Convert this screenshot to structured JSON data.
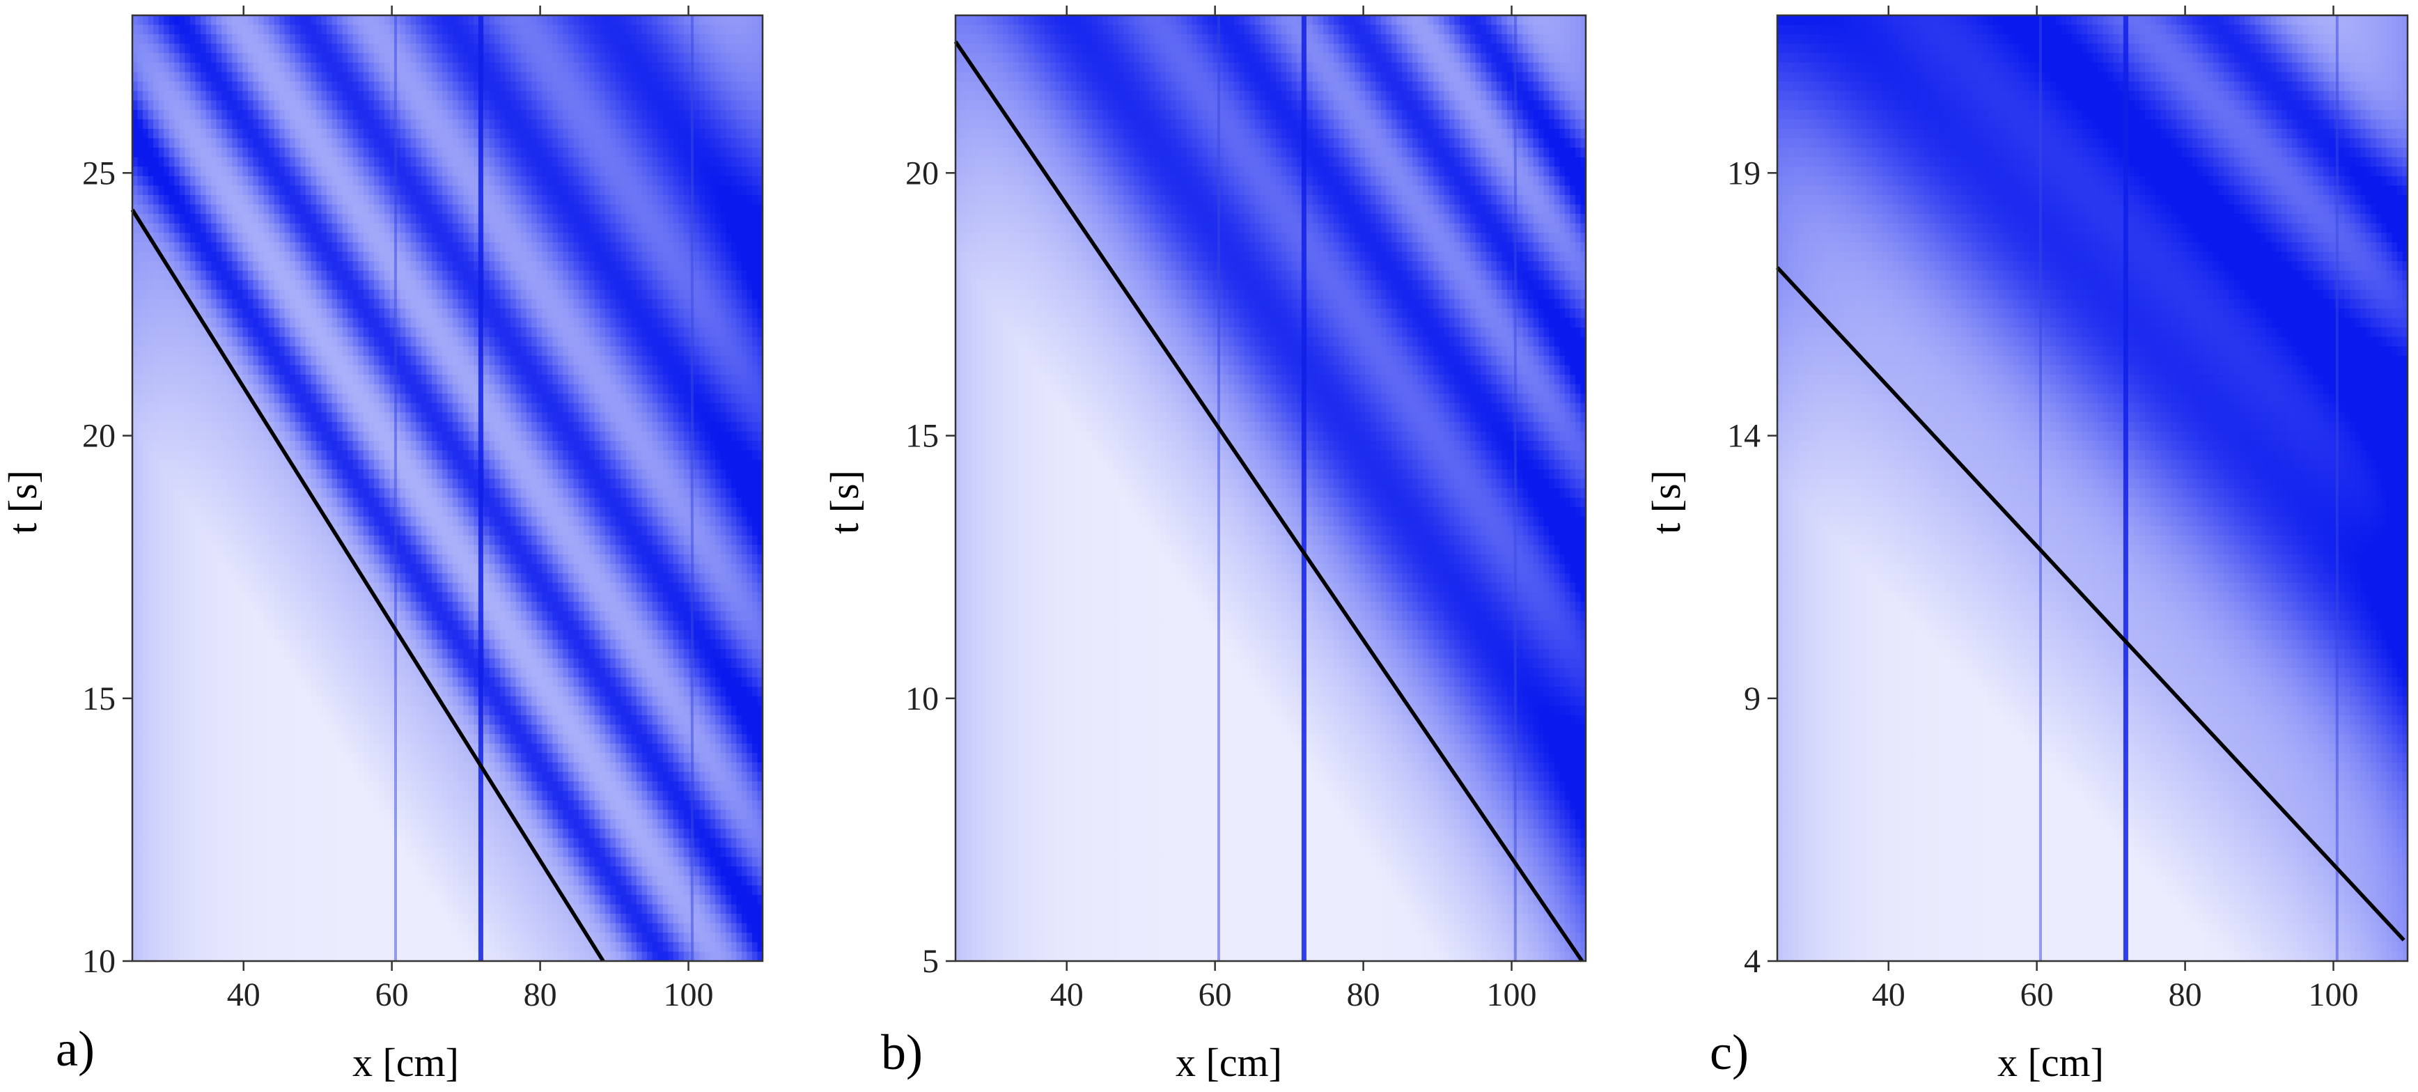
{
  "colors": {
    "low": "#ffffff",
    "high": "#0a1aee",
    "fit_line": "#000000"
  },
  "chart_data": [
    {
      "panel_label": "a)",
      "type": "heatmap",
      "xlabel": "x [cm]",
      "ylabel": "t [s]",
      "xlim": [
        25,
        110
      ],
      "ylim": [
        10,
        28
      ],
      "xticks": [
        40,
        60,
        80,
        100
      ],
      "yticks": [
        10,
        15,
        20,
        25
      ],
      "colormap": "white-to-blue",
      "dark_bands": {
        "slope_s_per_cm": -0.22,
        "intercepts_t_at_x0": [
          47.5,
          42.8,
          38.5,
          34.8,
          31.3
        ],
        "widths_s": [
          2.3,
          1.6,
          1.2,
          1.0,
          0.9
        ]
      },
      "vertical_streaks_x": [
        60.5,
        72,
        100.5
      ],
      "fit_line": {
        "points": [
          [
            25,
            24.3
          ],
          [
            88.5,
            10
          ]
        ]
      }
    },
    {
      "panel_label": "b)",
      "type": "heatmap",
      "xlabel": "x [cm]",
      "ylabel": "t [s]",
      "xlim": [
        25,
        110
      ],
      "ylim": [
        5,
        23
      ],
      "xticks": [
        40,
        60,
        80,
        100
      ],
      "yticks": [
        5,
        10,
        15,
        20
      ],
      "colormap": "white-to-blue",
      "dark_bands": {
        "slope_s_per_cm": -0.21,
        "intercepts_t_at_x0": [
          31.5,
          35.8,
          39.4,
          42.8
        ],
        "widths_s": [
          2.4,
          1.5,
          1.2,
          1.0
        ]
      },
      "vertical_streaks_x": [
        60.5,
        72,
        100.5
      ],
      "fit_line": {
        "points": [
          [
            25,
            22.5
          ],
          [
            109.5,
            5
          ]
        ]
      }
    },
    {
      "panel_label": "c)",
      "type": "heatmap",
      "xlabel": "x [cm]",
      "ylabel": "t [s]",
      "xlim": [
        25,
        110
      ],
      "ylim": [
        4,
        22
      ],
      "xticks": [
        40,
        60,
        80,
        100
      ],
      "yticks": [
        4,
        9,
        14,
        19
      ],
      "colormap": "white-to-blue",
      "dark_bands": {
        "slope_s_per_cm": -0.15,
        "intercepts_t_at_x0": [
          27.0,
          31.0,
          34.5
        ],
        "widths_s": [
          3.0,
          1.8,
          1.2
        ]
      },
      "vertical_streaks_x": [
        60.5,
        72,
        100.5
      ],
      "fit_line": {
        "points": [
          [
            25,
            17.2
          ],
          [
            109.5,
            4.4
          ]
        ]
      }
    }
  ]
}
